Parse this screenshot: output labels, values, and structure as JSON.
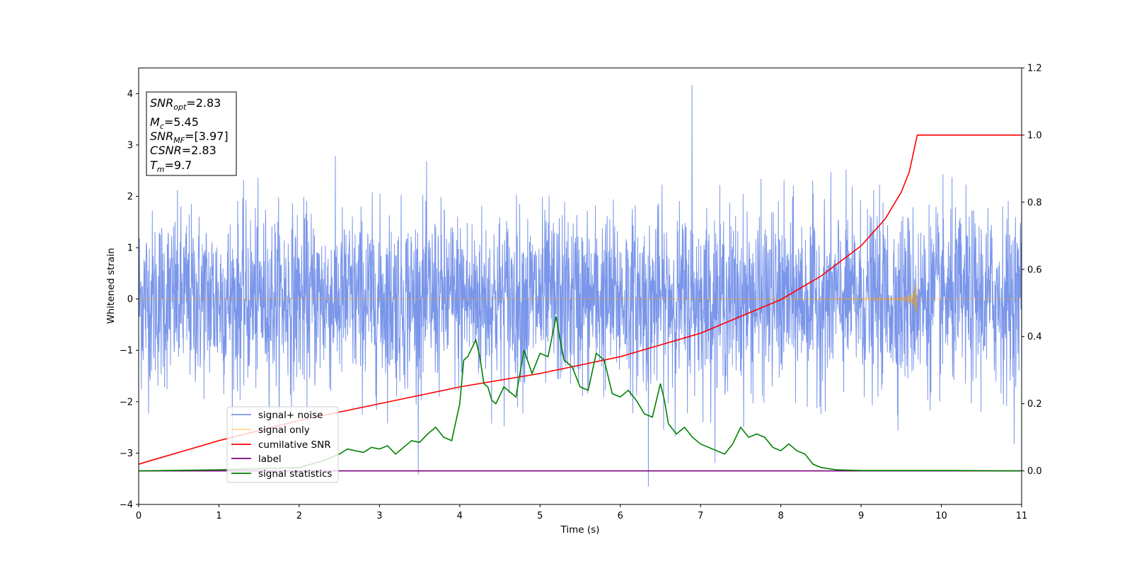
{
  "chart_data": {
    "type": "line",
    "xlabel": "Time (s)",
    "ylabel": "Whitened strain",
    "xlim": [
      0,
      11
    ],
    "ylim_left": [
      -4,
      4.5
    ],
    "ylim_right": [
      -0.1,
      1.2
    ],
    "x_ticks": [
      "0",
      "1",
      "2",
      "3",
      "4",
      "5",
      "6",
      "7",
      "8",
      "9",
      "10",
      "11"
    ],
    "y_ticks_left": [
      "−4",
      "−3",
      "−2",
      "−1",
      "0",
      "1",
      "2",
      "3",
      "4"
    ],
    "y_ticks_right": [
      "0.0",
      "0.2",
      "0.4",
      "0.6",
      "0.8",
      "1.0",
      "1.2"
    ],
    "grid": false,
    "legend_position": "lower-left",
    "info_box": [
      {
        "base": "SNR",
        "sub": "opt",
        "value": "=2.83"
      },
      {
        "base": "M",
        "sub": "c",
        "value": "=5.45"
      },
      {
        "base": "SNR",
        "sub": "MF",
        "value": "=[3.97]"
      },
      {
        "base": "CSNR",
        "sub": "",
        "value": "=2.83"
      },
      {
        "base": "T",
        "sub": "m",
        "value": "=9.7"
      }
    ],
    "series": [
      {
        "name": "signal+ noise",
        "axis": "left",
        "color": "#4169e1",
        "description_level": {
          "sigma": 0.85,
          "max": 4.17,
          "min": -3.65
        }
      },
      {
        "name": "signal only",
        "axis": "left",
        "color": "#ffa500",
        "chirp": {
          "t_merge": 9.7,
          "peak_amplitude": 0.27
        }
      },
      {
        "name": "cumilative SNR",
        "axis": "right",
        "color": "#ff0000",
        "x": [
          0,
          1,
          2,
          3,
          4,
          5,
          6,
          7,
          8,
          8.5,
          9,
          9.3,
          9.5,
          9.6,
          9.7,
          11
        ],
        "values": [
          0.02,
          0.09,
          0.15,
          0.2,
          0.25,
          0.29,
          0.34,
          0.41,
          0.51,
          0.58,
          0.67,
          0.75,
          0.83,
          0.89,
          1.0,
          1.0
        ]
      },
      {
        "name": "label",
        "axis": "right",
        "color": "#800080",
        "x": [
          0,
          11
        ],
        "values": [
          0.0,
          0.0
        ]
      },
      {
        "name": "signal statistics",
        "axis": "right",
        "color": "#008000",
        "x": [
          0,
          1,
          2,
          2.3,
          2.5,
          2.6,
          2.8,
          2.9,
          3.0,
          3.1,
          3.2,
          3.3,
          3.4,
          3.5,
          3.6,
          3.7,
          3.8,
          3.9,
          4.0,
          4.05,
          4.1,
          4.2,
          4.25,
          4.3,
          4.35,
          4.4,
          4.45,
          4.55,
          4.6,
          4.7,
          4.8,
          4.9,
          5.0,
          5.1,
          5.2,
          5.25,
          5.3,
          5.4,
          5.5,
          5.6,
          5.7,
          5.8,
          5.9,
          6.0,
          6.1,
          6.2,
          6.3,
          6.4,
          6.5,
          6.55,
          6.6,
          6.7,
          6.8,
          6.9,
          7.0,
          7.1,
          7.2,
          7.3,
          7.4,
          7.5,
          7.6,
          7.7,
          7.8,
          7.9,
          8.0,
          8.1,
          8.2,
          8.3,
          8.4,
          8.5,
          8.7,
          9.0,
          10.0,
          11.0
        ],
        "values": [
          0.0,
          0.003,
          0.01,
          0.03,
          0.05,
          0.065,
          0.055,
          0.07,
          0.065,
          0.075,
          0.05,
          0.07,
          0.09,
          0.085,
          0.11,
          0.13,
          0.1,
          0.09,
          0.2,
          0.33,
          0.34,
          0.39,
          0.34,
          0.26,
          0.25,
          0.21,
          0.2,
          0.25,
          0.24,
          0.22,
          0.36,
          0.29,
          0.35,
          0.34,
          0.46,
          0.39,
          0.33,
          0.31,
          0.25,
          0.24,
          0.35,
          0.33,
          0.23,
          0.22,
          0.24,
          0.21,
          0.17,
          0.16,
          0.26,
          0.21,
          0.14,
          0.11,
          0.13,
          0.1,
          0.08,
          0.07,
          0.06,
          0.05,
          0.08,
          0.13,
          0.1,
          0.11,
          0.1,
          0.07,
          0.06,
          0.08,
          0.06,
          0.05,
          0.02,
          0.01,
          0.003,
          0.001,
          0.001,
          0.0
        ]
      }
    ]
  }
}
